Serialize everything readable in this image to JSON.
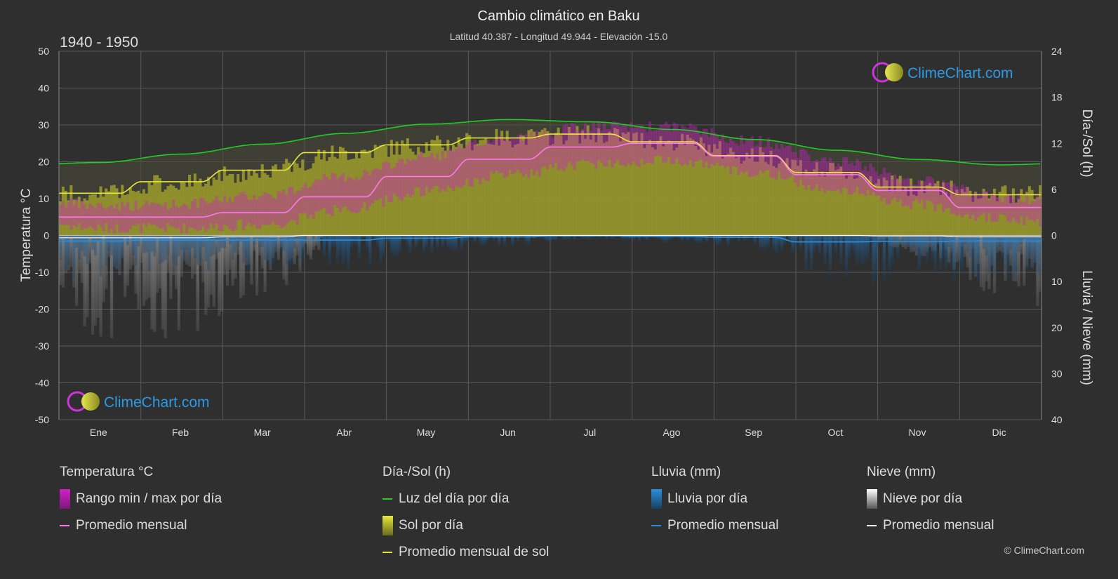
{
  "header": {
    "title": "Cambio climático en Baku",
    "subtitle": "Latitud 40.387 - Longitud 49.944 - Elevación -15.0",
    "period": "1940 - 1950"
  },
  "branding": {
    "logo_text": "ClimeChart.com",
    "copyright": "© ClimeChart.com"
  },
  "colors": {
    "background": "#2f2f2f",
    "grid": "#5a5a5a",
    "daylight": "#22cc22",
    "sunshine_fill": "#a3a32a",
    "sunshine_avg": "#e8e83a",
    "temp_range": "#d020c8",
    "temp_avg": "#ff77ee",
    "rain_bar": "#2a6ea8",
    "rain_avg": "#2b8fe0",
    "snow_bar": "#888888",
    "snow_avg": "#ffffff",
    "logo_blue": "#2b9be6"
  },
  "chart_data": {
    "type": "line",
    "x_categories": [
      "Ene",
      "Feb",
      "Mar",
      "Abr",
      "May",
      "Jun",
      "Jul",
      "Ago",
      "Sep",
      "Oct",
      "Nov",
      "Dic"
    ],
    "left_axis": {
      "label": "Temperatura °C",
      "ylim": [
        -50,
        50
      ],
      "ticks": [
        50,
        40,
        30,
        20,
        10,
        0,
        -10,
        -20,
        -30,
        -40,
        -50
      ]
    },
    "right_axis_top": {
      "label": "Día-/Sol (h)",
      "ylim": [
        0,
        24
      ],
      "ticks": [
        24,
        18,
        12,
        6,
        0
      ]
    },
    "right_axis_bottom": {
      "label": "Lluvia / Nieve (mm)",
      "ylim": [
        0,
        40
      ],
      "ticks": [
        0,
        10,
        20,
        30,
        40
      ]
    },
    "grid": true,
    "series": {
      "daylight_hours": [
        9.5,
        10.6,
        11.9,
        13.3,
        14.5,
        15.1,
        14.8,
        13.8,
        12.5,
        11.1,
        9.9,
        9.2
      ],
      "sunshine_hours": [
        5.5,
        7.0,
        8.5,
        10.8,
        11.8,
        12.7,
        13.2,
        12.2,
        10.4,
        8.2,
        6.3,
        5.3
      ],
      "temp_avg_c": [
        5.0,
        5.0,
        6.2,
        10.5,
        16.0,
        20.7,
        24.0,
        25.0,
        21.5,
        16.5,
        12.2,
        7.6
      ],
      "temp_daily_max_c": [
        8.0,
        8.5,
        11.0,
        16.0,
        21.5,
        26.5,
        29.5,
        29.5,
        25.5,
        20.0,
        15.0,
        10.5
      ],
      "temp_daily_min_c": [
        2.0,
        2.0,
        3.0,
        7.0,
        12.0,
        16.5,
        19.5,
        20.5,
        17.0,
        12.5,
        8.5,
        4.5
      ],
      "rain_monthly_avg_mm": [
        1.2,
        1.0,
        1.0,
        1.0,
        0.6,
        0.3,
        0.1,
        0.2,
        0.4,
        1.4,
        1.3,
        1.2
      ],
      "snow_monthly_avg_mm": [
        0.5,
        0.5,
        0.3,
        0.0,
        0.0,
        0.0,
        0.0,
        0.0,
        0.0,
        0.0,
        0.1,
        0.3
      ]
    }
  },
  "legend": {
    "temperature": {
      "title": "Temperatura °C",
      "items": [
        "Rango min / max por día",
        "Promedio mensual"
      ]
    },
    "sun": {
      "title": "Día-/Sol (h)",
      "items": [
        "Luz del día por día",
        "Sol por día",
        "Promedio mensual de sol"
      ]
    },
    "rain": {
      "title": "Lluvia (mm)",
      "items": [
        "Lluvia por día",
        "Promedio mensual"
      ]
    },
    "snow": {
      "title": "Nieve (mm)",
      "items": [
        "Nieve por día",
        "Promedio mensual"
      ]
    }
  }
}
